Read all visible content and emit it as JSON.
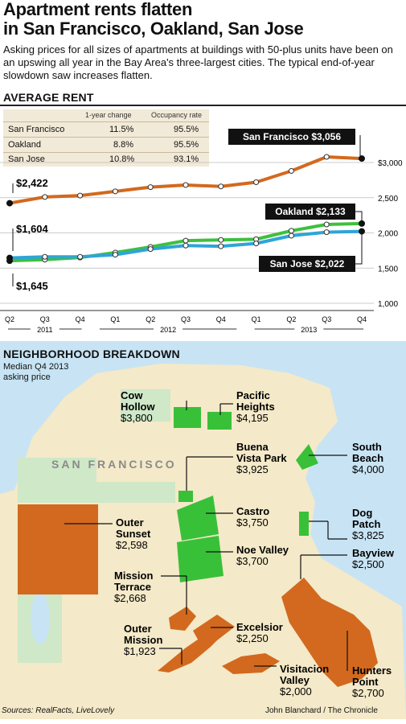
{
  "title_line1": "Apartment rents flatten",
  "title_line2": "in San Francisco, Oakland, San Jose",
  "subtitle": "Asking prices for all sizes of apartments at buildings with 50-plus units have been on an upswing all year in the Bay Area's three-largest cities. The typical end-of-year slowdown saw increases flatten.",
  "section_rent": "AVERAGE RENT",
  "table": {
    "headers": [
      "",
      "1-year change",
      "Occupancy rate"
    ],
    "rows": [
      {
        "city": "San Francisco",
        "change": "11.5%",
        "occupancy": "95.5%"
      },
      {
        "city": "Oakland",
        "change": "8.8%",
        "occupancy": "95.5%"
      },
      {
        "city": "San Jose",
        "change": "10.8%",
        "occupancy": "93.1%"
      }
    ]
  },
  "chart_data": {
    "type": "line",
    "x": [
      "Q2",
      "Q3",
      "Q4",
      "Q1",
      "Q2",
      "Q3",
      "Q4",
      "Q1",
      "Q2",
      "Q3",
      "Q4"
    ],
    "year_groups": [
      "2011",
      "2012",
      "2013"
    ],
    "ylim": [
      1000,
      3100
    ],
    "yticks": [
      "$3,000",
      "2,500",
      "2,000",
      "1,500",
      "1,000"
    ],
    "series": [
      {
        "name": "San Francisco",
        "color": "#d2691e",
        "values": [
          2422,
          2510,
          2530,
          2590,
          2650,
          2680,
          2660,
          2720,
          2880,
          3080,
          3056
        ]
      },
      {
        "name": "Oakland",
        "color": "#3ec03e",
        "values": [
          1604,
          1620,
          1650,
          1720,
          1800,
          1890,
          1900,
          1910,
          2030,
          2120,
          2133
        ]
      },
      {
        "name": "San Jose",
        "color": "#2fa4d8",
        "values": [
          1645,
          1660,
          1660,
          1690,
          1770,
          1820,
          1810,
          1850,
          1960,
          2010,
          2022
        ]
      }
    ],
    "labels": {
      "sf_end": "San Francisco $3,056",
      "oak_end": "Oakland $2,133",
      "sj_end": "San Jose $2,022",
      "sf_start": "$2,422",
      "oak_start": "$1,604",
      "sj_start": "$1,645"
    }
  },
  "section_map": "NEIGHBORHOOD BREAKDOWN",
  "map_note": "Median Q4 2013 asking price",
  "map_city": "SAN FRANCISCO",
  "neighborhoods": [
    {
      "name1": "Cow",
      "name2": "Hollow",
      "price": "$3,800"
    },
    {
      "name1": "Pacific",
      "name2": "Heights",
      "price": "$4,195"
    },
    {
      "name1": "Buena",
      "name2": "Vista Park",
      "price": "$3,925"
    },
    {
      "name1": "South",
      "name2": "Beach",
      "price": "$4,000"
    },
    {
      "name1": "Outer",
      "name2": "Sunset",
      "price": "$2,598"
    },
    {
      "name1": "Castro",
      "name2": "",
      "price": "$3,750"
    },
    {
      "name1": "Dog",
      "name2": "Patch",
      "price": "$3,825"
    },
    {
      "name1": "Noe Valley",
      "name2": "",
      "price": "$3,700"
    },
    {
      "name1": "Bayview",
      "name2": "",
      "price": "$2,500"
    },
    {
      "name1": "Mission",
      "name2": "Terrace",
      "price": "$2,668"
    },
    {
      "name1": "Outer",
      "name2": "Mission",
      "price": "$1,923"
    },
    {
      "name1": "Excelsior",
      "name2": "",
      "price": "$2,250"
    },
    {
      "name1": "Visitacion",
      "name2": "Valley",
      "price": "$2,000"
    },
    {
      "name1": "Hunters",
      "name2": "Point",
      "price": "$2,700"
    }
  ],
  "sources": "Sources: RealFacts, LiveLovely",
  "credit": "John Blanchard / The Chronicle",
  "colors": {
    "sf": "#d2691e",
    "oakland": "#3ec03e",
    "sanjose": "#2fa4d8",
    "water": "#c8e4f4",
    "land": "#f4e9c8",
    "park": "#cfe8c8",
    "orange": "#d2691e",
    "green": "#39c039"
  }
}
